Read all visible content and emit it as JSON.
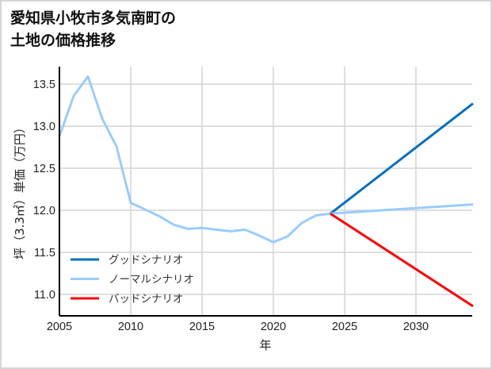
{
  "title_line1": "愛知県小牧市多気南町の",
  "title_line2": "土地の価格推移",
  "chart_data": {
    "type": "line",
    "title": "愛知県小牧市多気南町の土地の価格推移",
    "xlabel": "年",
    "ylabel": "坪（3.3㎡）単価（万円）",
    "xlim": [
      2005,
      2034
    ],
    "ylim": [
      10.72,
      13.75
    ],
    "xticks": [
      2005,
      2010,
      2015,
      2020,
      2025,
      2030
    ],
    "xtick_labels": [
      "2005",
      "2010",
      "2015",
      "2020",
      "2025",
      "2030"
    ],
    "yticks": [
      11.0,
      11.5,
      12.0,
      12.5,
      13.0,
      13.5
    ],
    "ytick_labels": [
      "11.0",
      "11.5",
      "12.0",
      "12.5",
      "13.0",
      "13.5"
    ],
    "grid": true,
    "legend_position": "lower left",
    "history": {
      "x": [
        2005,
        2006,
        2007,
        2008,
        2009,
        2010,
        2011,
        2012,
        2013,
        2014,
        2015,
        2016,
        2017,
        2018,
        2019,
        2020,
        2021,
        2022,
        2023,
        2024
      ],
      "y": [
        12.88,
        13.36,
        13.59,
        13.09,
        12.76,
        12.09,
        12.01,
        11.93,
        11.83,
        11.78,
        11.79,
        11.77,
        11.75,
        11.77,
        11.7,
        11.62,
        11.69,
        11.85,
        11.94,
        11.96
      ]
    },
    "series": [
      {
        "name": "グッドシナリオ",
        "color": "#0070c0",
        "x": [
          2024,
          2034
        ],
        "y": [
          11.96,
          13.27
        ]
      },
      {
        "name": "ノーマルシナリオ",
        "color": "#99ccff",
        "x": [
          2024,
          2034
        ],
        "y": [
          11.96,
          12.07
        ]
      },
      {
        "name": "バッドシナリオ",
        "color": "#ff0000",
        "x": [
          2024,
          2034
        ],
        "y": [
          11.96,
          10.86
        ]
      }
    ]
  }
}
